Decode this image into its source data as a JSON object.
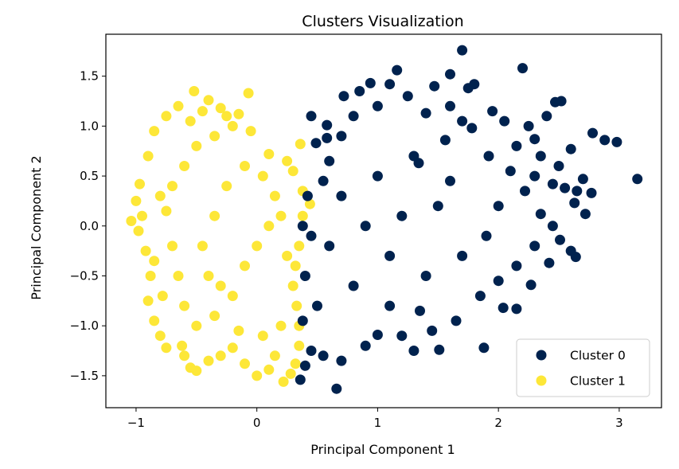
{
  "chart_data": {
    "type": "scatter",
    "title": "Clusters Visualization",
    "xlabel": "Principal Component 1",
    "ylabel": "Principal Component 2",
    "xlim": [
      -1.25,
      3.35
    ],
    "ylim": [
      -1.82,
      1.92
    ],
    "xticks": [
      -1,
      0,
      1,
      2,
      3
    ],
    "xtick_labels": [
      "−1",
      "0",
      "1",
      "2",
      "3"
    ],
    "yticks": [
      -1.5,
      -1.0,
      -0.5,
      0.0,
      0.5,
      1.0,
      1.5
    ],
    "ytick_labels": [
      "−1.5",
      "−1.0",
      "−0.5",
      "0.0",
      "0.5",
      "1.0",
      "1.5"
    ],
    "grid": false,
    "legend_position": "lower-right",
    "series": [
      {
        "name": "Cluster 0",
        "color": "#00224e",
        "points": [
          [
            1.7,
            1.76
          ],
          [
            1.16,
            1.56
          ],
          [
            2.2,
            1.58
          ],
          [
            3.15,
            0.47
          ],
          [
            2.78,
            0.93
          ],
          [
            2.88,
            0.86
          ],
          [
            2.98,
            0.84
          ],
          [
            2.52,
            1.25
          ],
          [
            2.47,
            1.24
          ],
          [
            2.4,
            1.1
          ],
          [
            2.6,
            0.77
          ],
          [
            2.7,
            0.47
          ],
          [
            2.77,
            0.33
          ],
          [
            2.45,
            0.42
          ],
          [
            2.63,
            0.23
          ],
          [
            2.51,
            -0.14
          ],
          [
            2.6,
            -0.25
          ],
          [
            2.64,
            -0.31
          ],
          [
            2.42,
            -0.37
          ],
          [
            2.27,
            -0.59
          ],
          [
            2.15,
            -0.83
          ],
          [
            1.88,
            -1.22
          ],
          [
            2.04,
            -0.82
          ],
          [
            1.51,
            -1.24
          ],
          [
            1.3,
            -1.25
          ],
          [
            1.0,
            -1.09
          ],
          [
            0.66,
            -1.63
          ],
          [
            0.36,
            -1.54
          ],
          [
            0.94,
            1.43
          ],
          [
            0.72,
            1.3
          ],
          [
            0.58,
            1.01
          ],
          [
            1.47,
            1.4
          ],
          [
            1.6,
            1.52
          ],
          [
            1.75,
            1.38
          ],
          [
            1.8,
            1.42
          ],
          [
            1.4,
            1.13
          ],
          [
            2.3,
            0.87
          ],
          [
            2.15,
            0.8
          ],
          [
            0.49,
            0.83
          ],
          [
            0.58,
            0.88
          ],
          [
            1.34,
            0.63
          ],
          [
            1.56,
            0.86
          ],
          [
            1.78,
            0.98
          ],
          [
            1.92,
            0.7
          ],
          [
            2.0,
            0.2
          ],
          [
            2.1,
            0.55
          ],
          [
            2.22,
            0.35
          ],
          [
            2.35,
            0.12
          ],
          [
            2.45,
            0.0
          ],
          [
            2.3,
            -0.2
          ],
          [
            2.15,
            -0.4
          ],
          [
            2.0,
            -0.55
          ],
          [
            1.85,
            -0.7
          ],
          [
            1.65,
            -0.95
          ],
          [
            1.45,
            -1.05
          ],
          [
            1.2,
            -1.1
          ],
          [
            0.9,
            -1.2
          ],
          [
            0.7,
            -1.35
          ],
          [
            0.55,
            -1.3
          ],
          [
            0.45,
            -1.25
          ],
          [
            0.4,
            -1.4
          ],
          [
            0.45,
            1.1
          ],
          [
            0.6,
            0.65
          ],
          [
            0.7,
            0.9
          ],
          [
            0.8,
            1.1
          ],
          [
            1.0,
            1.2
          ],
          [
            1.25,
            1.3
          ],
          [
            0.85,
            1.35
          ],
          [
            1.1,
            1.42
          ],
          [
            1.95,
            1.15
          ],
          [
            2.05,
            1.05
          ],
          [
            2.25,
            1.0
          ],
          [
            2.35,
            0.7
          ],
          [
            2.5,
            0.6
          ],
          [
            2.55,
            0.38
          ],
          [
            2.3,
            0.5
          ],
          [
            1.6,
            1.2
          ],
          [
            1.7,
            1.05
          ],
          [
            1.5,
            0.2
          ],
          [
            1.2,
            0.1
          ],
          [
            0.9,
            0.0
          ],
          [
            1.1,
            -0.3
          ],
          [
            1.4,
            -0.5
          ],
          [
            1.7,
            -0.3
          ],
          [
            1.9,
            -0.1
          ],
          [
            1.6,
            0.45
          ],
          [
            1.3,
            0.7
          ],
          [
            1.0,
            0.5
          ],
          [
            0.7,
            0.3
          ],
          [
            0.6,
            -0.2
          ],
          [
            0.8,
            -0.6
          ],
          [
            1.1,
            -0.8
          ],
          [
            1.35,
            -0.85
          ],
          [
            0.5,
            -0.8
          ],
          [
            0.45,
            -0.1
          ],
          [
            0.42,
            0.3
          ],
          [
            0.38,
            0.0
          ],
          [
            0.4,
            -0.5
          ],
          [
            0.38,
            -0.95
          ],
          [
            0.55,
            0.45
          ],
          [
            2.65,
            0.35
          ],
          [
            2.72,
            0.12
          ]
        ]
      },
      {
        "name": "Cluster 1",
        "color": "#fde738",
        "points": [
          [
            -0.52,
            1.35
          ],
          [
            -0.4,
            1.26
          ],
          [
            -0.3,
            1.18
          ],
          [
            -0.15,
            1.12
          ],
          [
            -0.65,
            1.2
          ],
          [
            -0.75,
            1.1
          ],
          [
            -0.85,
            0.95
          ],
          [
            -0.9,
            0.7
          ],
          [
            -0.97,
            0.42
          ],
          [
            -1.0,
            0.25
          ],
          [
            -1.04,
            0.05
          ],
          [
            -0.98,
            -0.05
          ],
          [
            -0.92,
            -0.25
          ],
          [
            -0.88,
            -0.5
          ],
          [
            -0.9,
            -0.75
          ],
          [
            -0.85,
            -0.95
          ],
          [
            -0.8,
            -1.1
          ],
          [
            -0.75,
            -1.22
          ],
          [
            -0.6,
            -1.3
          ],
          [
            -0.55,
            -1.42
          ],
          [
            -0.5,
            -1.45
          ],
          [
            -0.4,
            -1.35
          ],
          [
            -0.3,
            -1.3
          ],
          [
            -0.1,
            -1.38
          ],
          [
            0.0,
            -1.5
          ],
          [
            0.1,
            -1.44
          ],
          [
            0.22,
            -1.56
          ],
          [
            0.28,
            -1.48
          ],
          [
            0.32,
            -1.38
          ],
          [
            0.35,
            -1.2
          ],
          [
            0.35,
            -1.0
          ],
          [
            0.33,
            -0.8
          ],
          [
            0.3,
            -0.6
          ],
          [
            0.32,
            -0.4
          ],
          [
            0.35,
            -0.2
          ],
          [
            0.38,
            0.1
          ],
          [
            0.44,
            0.22
          ],
          [
            0.38,
            0.35
          ],
          [
            0.3,
            0.55
          ],
          [
            0.36,
            0.82
          ],
          [
            0.25,
            0.65
          ],
          [
            0.1,
            0.72
          ],
          [
            -0.05,
            0.95
          ],
          [
            -0.07,
            1.33
          ],
          [
            -0.2,
            1.0
          ],
          [
            -0.35,
            0.9
          ],
          [
            -0.5,
            0.8
          ],
          [
            -0.6,
            0.6
          ],
          [
            -0.7,
            0.4
          ],
          [
            -0.75,
            0.15
          ],
          [
            -0.7,
            -0.2
          ],
          [
            -0.65,
            -0.5
          ],
          [
            -0.6,
            -0.8
          ],
          [
            -0.5,
            -1.0
          ],
          [
            -0.35,
            -0.9
          ],
          [
            -0.2,
            -0.7
          ],
          [
            -0.1,
            -0.4
          ],
          [
            0.0,
            -0.2
          ],
          [
            0.1,
            0.0
          ],
          [
            0.15,
            0.3
          ],
          [
            0.05,
            0.5
          ],
          [
            -0.1,
            0.6
          ],
          [
            -0.25,
            0.4
          ],
          [
            -0.35,
            0.1
          ],
          [
            -0.45,
            -0.2
          ],
          [
            -0.4,
            -0.5
          ],
          [
            -0.3,
            -0.6
          ],
          [
            -0.15,
            -1.05
          ],
          [
            0.05,
            -1.1
          ],
          [
            0.2,
            -1.0
          ],
          [
            0.25,
            -0.3
          ],
          [
            0.2,
            0.1
          ],
          [
            -0.55,
            1.05
          ],
          [
            -0.8,
            0.3
          ],
          [
            -0.95,
            0.1
          ],
          [
            -0.85,
            -0.35
          ],
          [
            -0.2,
            -1.22
          ],
          [
            0.15,
            -1.3
          ],
          [
            -0.45,
            1.15
          ],
          [
            -0.25,
            1.1
          ],
          [
            -0.62,
            -1.2
          ],
          [
            -0.78,
            -0.7
          ]
        ]
      }
    ]
  }
}
